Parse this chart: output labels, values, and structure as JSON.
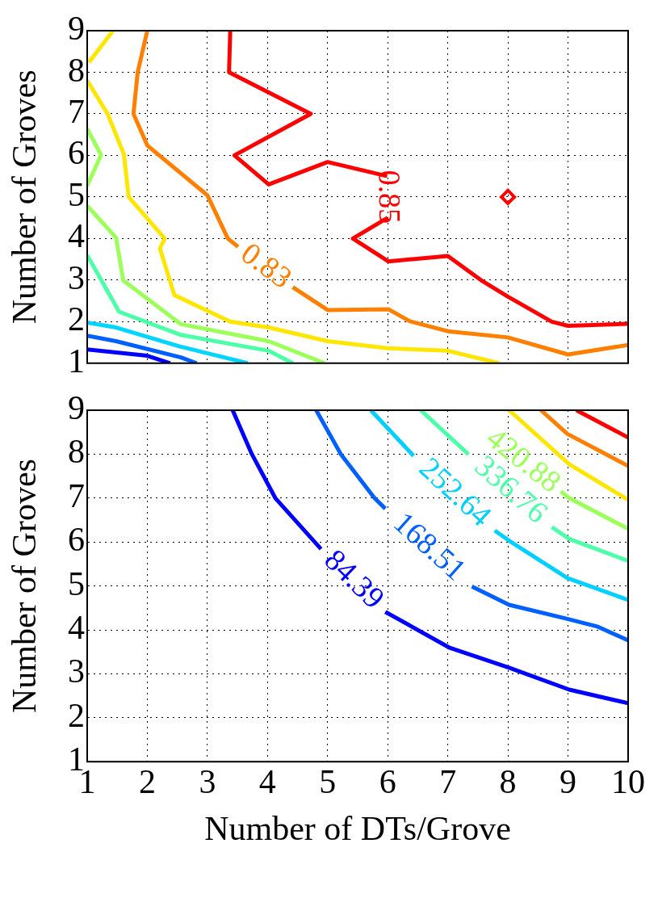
{
  "chart_data": [
    {
      "type": "line",
      "ylabel": "Number of Groves",
      "xlim": [
        1,
        10
      ],
      "ylim": [
        1,
        9
      ],
      "xticks": [
        1,
        2,
        3,
        4,
        5,
        6,
        7,
        8,
        9,
        10
      ],
      "yticks": [
        1,
        2,
        3,
        4,
        5,
        6,
        7,
        8,
        9
      ],
      "grid": true,
      "tick_labels": "y",
      "series": [
        {
          "name": "0.85",
          "color": "#ff0000",
          "x": [
            3.38,
            3.36,
            4.72,
            3.45,
            4.02,
            5.0,
            5.99,
            null,
            6.0,
            5.42,
            6.01,
            7.0,
            7.55,
            8.0,
            8.73,
            9.0,
            10.0
          ],
          "values": [
            9,
            8,
            7,
            6,
            5.3,
            5.84,
            5.5,
            null,
            4.5,
            4.0,
            3.45,
            3.58,
            3.0,
            2.6,
            2.0,
            1.9,
            1.95
          ]
        },
        {
          "type": "scatter",
          "marker": "diamond",
          "color": "#ff0000",
          "x": [
            8
          ],
          "values": [
            5
          ]
        },
        {
          "name": "0.83",
          "color": "#ff8000",
          "x": [
            2.0,
            1.84,
            1.77,
            2.0,
            3.0,
            3.34,
            3.51,
            null,
            4.42,
            5.0,
            6.01,
            6.37,
            7.0,
            8.0,
            9.0,
            10.0
          ],
          "values": [
            9,
            8,
            7,
            6.24,
            5.04,
            4.0,
            3.8,
            null,
            2.83,
            2.28,
            2.3,
            2.01,
            1.77,
            1.62,
            1.21,
            1.44
          ]
        },
        {
          "color": "#ffe600",
          "x": [
            1.43,
            1.03
          ],
          "values": [
            9,
            8.24
          ]
        },
        {
          "color": "#ffe600",
          "x": [
            1.0,
            1.34,
            1.61,
            1.69,
            2.29,
            2.21,
            2.45,
            3.38,
            4.02,
            5.0,
            6.0,
            7.0,
            7.85
          ],
          "values": [
            7.8,
            7.0,
            6.03,
            5.0,
            4.0,
            3.76,
            2.64,
            2.0,
            1.86,
            1.53,
            1.36,
            1.3,
            1.0
          ]
        },
        {
          "color": "#9cff5a",
          "x": [
            1.0,
            1.23,
            1.0
          ],
          "values": [
            6.64,
            6.01,
            5.27
          ]
        },
        {
          "color": "#9cff5a",
          "x": [
            1.0,
            1.48,
            1.6,
            2.56,
            4.02,
            4.95
          ],
          "values": [
            4.79,
            4.02,
            2.99,
            1.94,
            1.53,
            1.0
          ]
        },
        {
          "color": "#4dffa8",
          "x": [
            1.0,
            1.53,
            2.56,
            4.02,
            4.42
          ],
          "values": [
            3.6,
            2.24,
            1.68,
            1.3,
            1.0
          ]
        },
        {
          "color": "#00d5ff",
          "x": [
            1.0,
            1.48,
            2.52,
            3.67
          ],
          "values": [
            1.98,
            1.86,
            1.41,
            1.0
          ]
        },
        {
          "color": "#0060ff",
          "x": [
            1.0,
            1.48,
            2.56,
            2.82
          ],
          "values": [
            1.66,
            1.53,
            1.14,
            1.0
          ]
        },
        {
          "color": "#0000ff",
          "x": [
            1.0,
            2.0,
            2.38
          ],
          "values": [
            1.33,
            1.18,
            1.0
          ]
        }
      ]
    },
    {
      "type": "line",
      "xlabel": "Number of DTs/Grove",
      "ylabel": "Number of Groves",
      "xlim": [
        1,
        10
      ],
      "ylim": [
        1,
        9
      ],
      "xticks": [
        1,
        2,
        3,
        4,
        5,
        6,
        7,
        8,
        9,
        10
      ],
      "yticks": [
        1,
        2,
        3,
        4,
        5,
        6,
        7,
        8,
        9
      ],
      "grid": true,
      "series": [
        {
          "name": "84.39",
          "color": "#0000ff",
          "x": [
            3.42,
            3.74,
            4.13,
            4.89,
            null,
            5.96,
            7.02,
            8.02,
            9.02,
            10.0
          ],
          "values": [
            9,
            8.0,
            7.0,
            5.84,
            null,
            4.41,
            3.6,
            3.14,
            2.64,
            2.33
          ]
        },
        {
          "name": "168.51",
          "color": "#0060ff",
          "x": [
            4.81,
            5.22,
            5.78,
            5.96,
            null,
            7.4,
            8.02,
            8.96,
            9.5,
            10.0
          ],
          "values": [
            9,
            8.0,
            7.0,
            6.76,
            null,
            4.99,
            4.57,
            4.26,
            4.07,
            3.76
          ]
        },
        {
          "name": "252.64",
          "color": "#00d0ff",
          "x": [
            5.72,
            6.43,
            null,
            7.78,
            8.02,
            8.99,
            10.0
          ],
          "values": [
            9,
            7.96,
            null,
            6.26,
            6.03,
            5.18,
            4.68
          ]
        },
        {
          "name": "336.76",
          "color": "#4dffa8",
          "x": [
            6.55,
            7.34,
            null,
            8.73,
            9.02,
            10.0
          ],
          "values": [
            9,
            8.0,
            null,
            6.34,
            6.07,
            5.57
          ]
        },
        {
          "name": "420.88",
          "color": "#9cff5a",
          "x": [
            null,
            8.88,
            9.02,
            10.0
          ],
          "values": [
            null,
            7.15,
            7.0,
            6.3
          ]
        },
        {
          "color": "#ffe600",
          "x": [
            8.02,
            9.02,
            10.0
          ],
          "values": [
            9,
            7.77,
            6.96
          ]
        },
        {
          "color": "#ff8000",
          "x": [
            8.55,
            8.99,
            10.0
          ],
          "values": [
            9,
            8.46,
            7.73
          ]
        },
        {
          "color": "#ff0000",
          "x": [
            9.14,
            10.0
          ],
          "values": [
            9,
            8.38
          ]
        }
      ]
    }
  ]
}
